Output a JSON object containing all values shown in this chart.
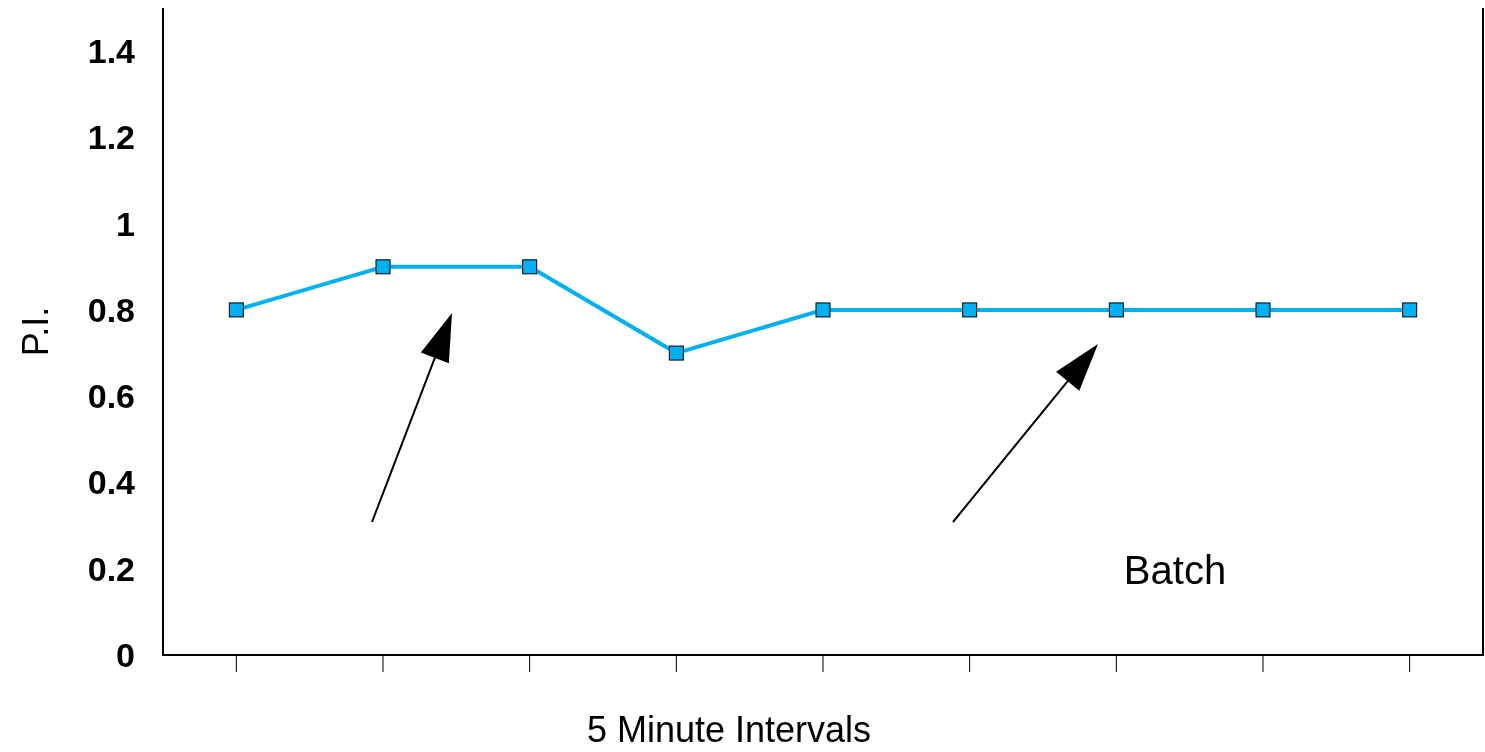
{
  "chart_data": {
    "type": "line",
    "xlabel": "5 Minute Intervals",
    "ylabel": "P.I.",
    "categories": [
      null,
      null,
      null,
      null,
      null,
      null,
      null,
      null,
      null
    ],
    "series": [
      {
        "color": "#00b0f0",
        "values": [
          0.8,
          0.9,
          0.9,
          0.7,
          0.8,
          0.8,
          0.8,
          0.8,
          0.8
        ]
      }
    ],
    "ylim": [
      0,
      1.5
    ],
    "yticks": [
      0,
      0.2,
      0.4,
      0.6,
      0.8,
      1,
      1.2,
      1.4
    ],
    "marker": "square",
    "line_style": "solid",
    "annotations": [
      "Batch"
    ]
  }
}
